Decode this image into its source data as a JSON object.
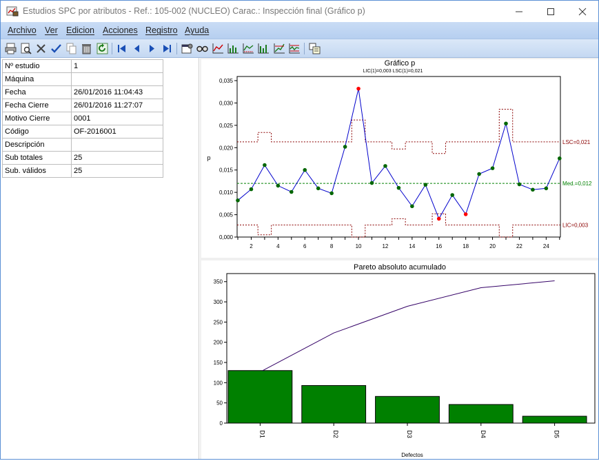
{
  "window": {
    "title": "Estudios SPC por atributos  -  Ref.: 105-002 (NUCLEO)  Carac.: Inspección final (Gráfico p)"
  },
  "menu": {
    "items": [
      "Archivo",
      "Ver",
      "Edicion",
      "Acciones",
      "Registro",
      "Ayuda"
    ]
  },
  "toolbar": {
    "icons": [
      "print-icon",
      "print-preview-icon",
      "delete-icon",
      "check-icon",
      "copy-icon",
      "trash-icon",
      "refresh-icon",
      "first-record-icon",
      "previous-record-icon",
      "next-record-icon",
      "last-record-icon",
      "properties-icon",
      "glasses-icon",
      "chart-line-icon",
      "chart-bar-icon",
      "chart-line-alt-icon",
      "chart-bar-alt-icon",
      "chart-trend-icon",
      "chart-control-icon",
      "export-icon"
    ]
  },
  "info": {
    "rows": [
      {
        "label": "Nº estudio",
        "value": "1"
      },
      {
        "label": "Máquina",
        "value": ""
      },
      {
        "label": "Fecha",
        "value": "26/01/2016 11:04:43"
      },
      {
        "label": "Fecha Cierre",
        "value": "26/01/2016 11:27:07"
      },
      {
        "label": "Motivo Cierre",
        "value": "0001"
      },
      {
        "label": "Código",
        "value": "OF-2016001"
      },
      {
        "label": "Descripción",
        "value": ""
      },
      {
        "label": "Sub totales",
        "value": "25"
      },
      {
        "label": "Sub. válidos",
        "value": "25"
      }
    ]
  },
  "colors": {
    "series": "#0000cc",
    "point": "#006600",
    "point_out": "#ff0000",
    "limit": "#8b0000",
    "mean": "#008000",
    "bar": "#008000",
    "cumulative": "#330066"
  },
  "chart_data": [
    {
      "type": "line",
      "title": "Gráfico p",
      "subtitle": "LIC(1)=0,003  LSC(1)=0,021",
      "ylabel": "p",
      "xlabel": "",
      "xlim": [
        1,
        25
      ],
      "ylim": [
        0,
        0.035
      ],
      "yticks": [
        "0,000",
        "0,005",
        "0,010",
        "0,015",
        "0,020",
        "0,025",
        "0,030",
        "0,035"
      ],
      "xticks": [
        2,
        4,
        6,
        8,
        10,
        12,
        14,
        16,
        18,
        20,
        22,
        24
      ],
      "grid": false,
      "series": [
        {
          "x": [
            1,
            2,
            3,
            4,
            5,
            6,
            7,
            8,
            9,
            10,
            11,
            12,
            13,
            14,
            15,
            16,
            17,
            18,
            19,
            20,
            21,
            22,
            23,
            24,
            25
          ],
          "values": [
            0.0082,
            0.0107,
            0.0161,
            0.0115,
            0.0101,
            0.015,
            0.0109,
            0.0098,
            0.0202,
            0.0332,
            0.0121,
            0.0159,
            0.011,
            0.0069,
            0.0117,
            0.0041,
            0.0094,
            0.0051,
            0.0141,
            0.0154,
            0.0254,
            0.0118,
            0.0106,
            0.0109,
            0.0176
          ],
          "out_of_control": [
            10,
            16,
            18
          ]
        }
      ],
      "limits": {
        "lsc": {
          "values": [
            0.0213,
            0.0213,
            0.0234,
            0.0213,
            0.0213,
            0.0213,
            0.0213,
            0.0213,
            0.0213,
            0.0262,
            0.0213,
            0.0213,
            0.0197,
            0.0213,
            0.0213,
            0.0187,
            0.0213,
            0.0213,
            0.0213,
            0.0213,
            0.0286,
            0.0213,
            0.0213,
            0.0213,
            0.0213
          ],
          "label": "LSC=0,021"
        },
        "lic": {
          "values": [
            0.0027,
            0.0027,
            0.0005,
            0.0027,
            0.0027,
            0.0027,
            0.0027,
            0.0027,
            0.0027,
            0.0,
            0.0027,
            0.0027,
            0.0041,
            0.0027,
            0.0027,
            0.0052,
            0.0027,
            0.0027,
            0.0027,
            0.0027,
            0.0,
            0.0027,
            0.0027,
            0.0027,
            0.0027
          ],
          "label": "LIC=0,003"
        },
        "mean": {
          "value": 0.012,
          "label": "Med.=0,012"
        }
      }
    },
    {
      "type": "bar",
      "title": "Pareto absoluto acumulado",
      "xlabel": "Defectos",
      "ylabel": "",
      "categories": [
        "D1",
        "D2",
        "D3",
        "D4",
        "D5"
      ],
      "values": [
        130,
        93,
        66,
        46,
        17
      ],
      "cumulative": [
        130,
        223,
        289,
        335,
        352
      ],
      "ylim": [
        0,
        370
      ],
      "yticks": [
        0,
        50,
        100,
        150,
        200,
        250,
        300,
        350
      ],
      "grid": false
    }
  ]
}
